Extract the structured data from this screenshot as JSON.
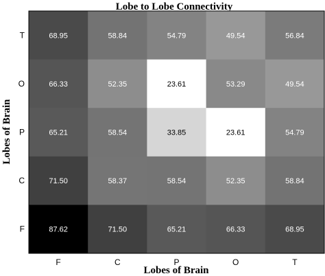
{
  "chart_data": {
    "type": "heatmap",
    "title": "Lobe to Lobe Connectivity",
    "xlabel": "Lobes of Brain",
    "ylabel": "Lobes of Brain",
    "x_categories": [
      "F",
      "C",
      "P",
      "O",
      "T"
    ],
    "y_categories": [
      "T",
      "O",
      "P",
      "C",
      "F"
    ],
    "values": [
      [
        68.95,
        58.84,
        54.79,
        49.54,
        56.84
      ],
      [
        66.33,
        52.35,
        23.61,
        53.29,
        49.54
      ],
      [
        65.21,
        58.54,
        33.85,
        23.61,
        54.79
      ],
      [
        71.5,
        58.37,
        58.54,
        52.35,
        58.84
      ],
      [
        87.62,
        71.5,
        65.21,
        66.33,
        68.95
      ]
    ],
    "value_labels": [
      [
        "68.95",
        "58.84",
        "54.79",
        "49.54",
        "56.84"
      ],
      [
        "66.33",
        "52.35",
        "23.61",
        "53.29",
        "49.54"
      ],
      [
        "65.21",
        "58.54",
        "33.85",
        "23.61",
        "54.79"
      ],
      [
        "71.50",
        "58.37",
        "58.54",
        "52.35",
        "58.84"
      ],
      [
        "87.62",
        "71.50",
        "65.21",
        "66.33",
        "68.95"
      ]
    ],
    "colormap": "grayscale-reversed",
    "color_low": "#ffffff",
    "color_high": "#000000",
    "grid": false,
    "legend": "none"
  }
}
